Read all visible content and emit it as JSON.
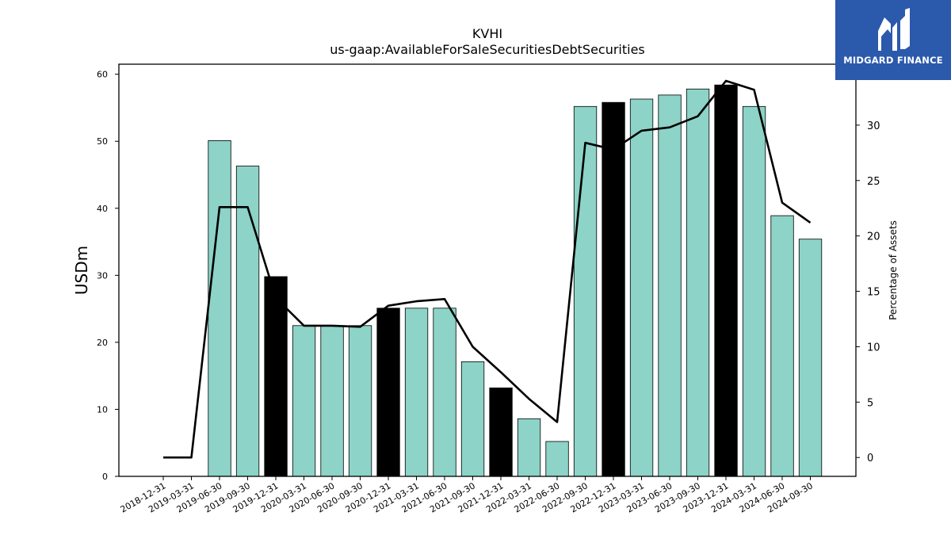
{
  "header": {
    "title": "KVHI",
    "subtitle": "us-gaap:AvailableForSaleSecuritiesDebtSecurities"
  },
  "logo": {
    "text": "MIDGARD FINANCE",
    "background": "#2b59ac"
  },
  "chart_data": {
    "type": "bar",
    "title": "KVHI",
    "subtitle": "us-gaap:AvailableForSaleSecuritiesDebtSecurities",
    "ylabel": "USDm",
    "y2label": "Percentage of Assets",
    "ylim": [
      0,
      61.5
    ],
    "y2lim": [
      -1.7,
      35.5
    ],
    "yticks": [
      0,
      10,
      20,
      30,
      40,
      50,
      60
    ],
    "y2ticks": [
      0,
      5,
      10,
      15,
      20,
      25,
      30
    ],
    "categories": [
      "2018-12-31",
      "2019-03-31",
      "2019-06-30",
      "2019-09-30",
      "2019-12-31",
      "2020-03-31",
      "2020-06-30",
      "2020-09-30",
      "2020-12-31",
      "2021-03-31",
      "2021-06-30",
      "2021-09-30",
      "2021-12-31",
      "2022-03-31",
      "2022-06-30",
      "2022-09-30",
      "2022-12-31",
      "2023-03-31",
      "2023-06-30",
      "2023-09-30",
      "2023-12-31",
      "2024-03-31",
      "2024-06-30",
      "2024-09-30"
    ],
    "values": [
      0,
      0,
      50.1,
      46.3,
      29.8,
      22.5,
      22.4,
      22.5,
      25.1,
      25.1,
      25.1,
      17.1,
      13.2,
      8.6,
      5.2,
      55.2,
      55.8,
      56.3,
      56.9,
      57.8,
      58.4,
      55.2,
      38.9,
      35.4
    ],
    "highlight": [
      false,
      false,
      false,
      false,
      true,
      false,
      false,
      false,
      true,
      false,
      false,
      false,
      true,
      false,
      false,
      false,
      true,
      false,
      false,
      false,
      true,
      false,
      false,
      false
    ],
    "line_values": [
      0.0,
      0.0,
      22.6,
      22.6,
      14.4,
      11.9,
      11.9,
      11.8,
      13.7,
      14.1,
      14.3,
      10.0,
      7.7,
      5.3,
      3.2,
      28.4,
      27.8,
      29.5,
      29.8,
      30.8,
      34.0,
      33.2,
      23.0,
      21.2
    ],
    "colors": {
      "bar": "#8dd3c7",
      "bar_highlight": "#000000",
      "line": "#000000"
    },
    "grid": false
  }
}
